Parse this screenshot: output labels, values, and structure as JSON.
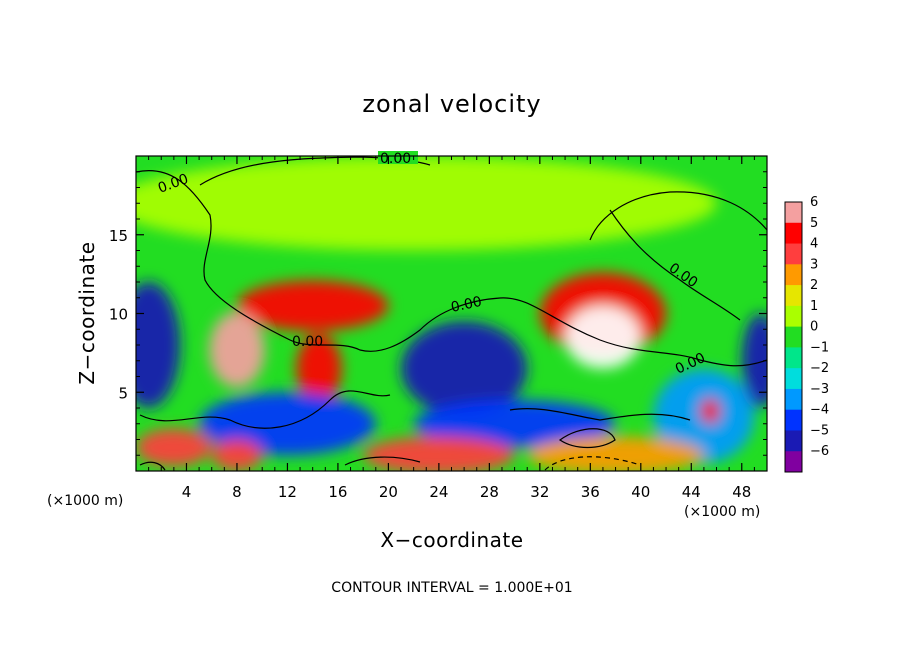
{
  "chart_data": {
    "type": "heatmap",
    "title": "zonal velocity",
    "xlabel": "X−coordinate",
    "ylabel": "Z−coordinate",
    "x_units_left": "(×1000 m)",
    "x_units_right": "(×1000 m)",
    "xlim": [
      0,
      50
    ],
    "ylim": [
      0,
      20
    ],
    "xticks": [
      4,
      8,
      12,
      16,
      20,
      24,
      28,
      32,
      36,
      40,
      44,
      48
    ],
    "xtick_labels": [
      "4",
      "8",
      "12",
      "16",
      "20",
      "24",
      "28",
      "32",
      "36",
      "40",
      "44",
      "48"
    ],
    "yticks": [
      5,
      10,
      15
    ],
    "ytick_labels": [
      "5",
      "10",
      "15"
    ],
    "colorbar": {
      "levels": [
        6,
        5,
        4,
        3,
        2,
        1,
        0,
        -1,
        -2,
        -3,
        -4,
        -5,
        -6
      ],
      "labels": [
        "6",
        "5",
        "4",
        "3",
        "2",
        "1",
        "0",
        "−1",
        "−2",
        "−3",
        "−4",
        "−5",
        "−6"
      ],
      "colors": [
        "#f4a0a0",
        "#ff0000",
        "#ff3e3e",
        "#ff9a00",
        "#e6e600",
        "#aaff00",
        "#22dd22",
        "#00e68a",
        "#00dddd",
        "#0099ff",
        "#0033ff",
        "#1a1ab4",
        "#8000a0"
      ]
    },
    "contour_labels": [
      "0.00",
      "0.00",
      "0.00",
      "0.00",
      "0.00",
      "0.00"
    ],
    "contour_interval": "CONTOUR INTERVAL = 1.000E+01",
    "field_features": [
      {
        "value": 0.5,
        "cx": 22,
        "cz": 17,
        "rx": 24,
        "rz": 3
      },
      {
        "value": 4.5,
        "cx": 14,
        "cz": 10.5,
        "rx": 6,
        "rz": 1.6
      },
      {
        "value": 5.0,
        "cx": 37,
        "cz": 10,
        "rx": 5,
        "rz": 2.6
      },
      {
        "value": 6.5,
        "cx": 37,
        "cz": 8.5,
        "rx": 3,
        "rz": 2
      },
      {
        "value": 5.5,
        "cx": 8,
        "cz": 7.7,
        "rx": 2.2,
        "rz": 2.4
      },
      {
        "value": 5.0,
        "cx": 14.5,
        "cz": 6.5,
        "rx": 1.8,
        "rz": 2.2
      },
      {
        "value": -5.0,
        "cx": 1,
        "cz": 8,
        "rx": 2.5,
        "rz": 4
      },
      {
        "value": -5.0,
        "cx": 26,
        "cz": 6.5,
        "rx": 5,
        "rz": 3
      },
      {
        "value": -4.0,
        "cx": 12,
        "cz": 3,
        "rx": 7,
        "rz": 2
      },
      {
        "value": -4.0,
        "cx": 30,
        "cz": 3,
        "rx": 8,
        "rz": 1.5
      },
      {
        "value": -3.0,
        "cx": 45,
        "cz": 3.5,
        "rx": 4,
        "rz": 3
      },
      {
        "value": 4.5,
        "cx": 45.5,
        "cz": 3.8,
        "rx": 0.8,
        "rz": 0.8
      },
      {
        "value": 4.0,
        "cx": 3,
        "cz": 1.5,
        "rx": 3,
        "rz": 1.2
      },
      {
        "value": 3.5,
        "cx": 8,
        "cz": 1,
        "rx": 2,
        "rz": 1
      },
      {
        "value": 4.0,
        "cx": 24,
        "cz": 1,
        "rx": 6,
        "rz": 1.2
      },
      {
        "value": 3.0,
        "cx": 38,
        "cz": 1,
        "rx": 7,
        "rz": 1.2
      },
      {
        "value": -5.0,
        "cx": 49.5,
        "cz": 7,
        "rx": 1.5,
        "rz": 3
      }
    ]
  }
}
